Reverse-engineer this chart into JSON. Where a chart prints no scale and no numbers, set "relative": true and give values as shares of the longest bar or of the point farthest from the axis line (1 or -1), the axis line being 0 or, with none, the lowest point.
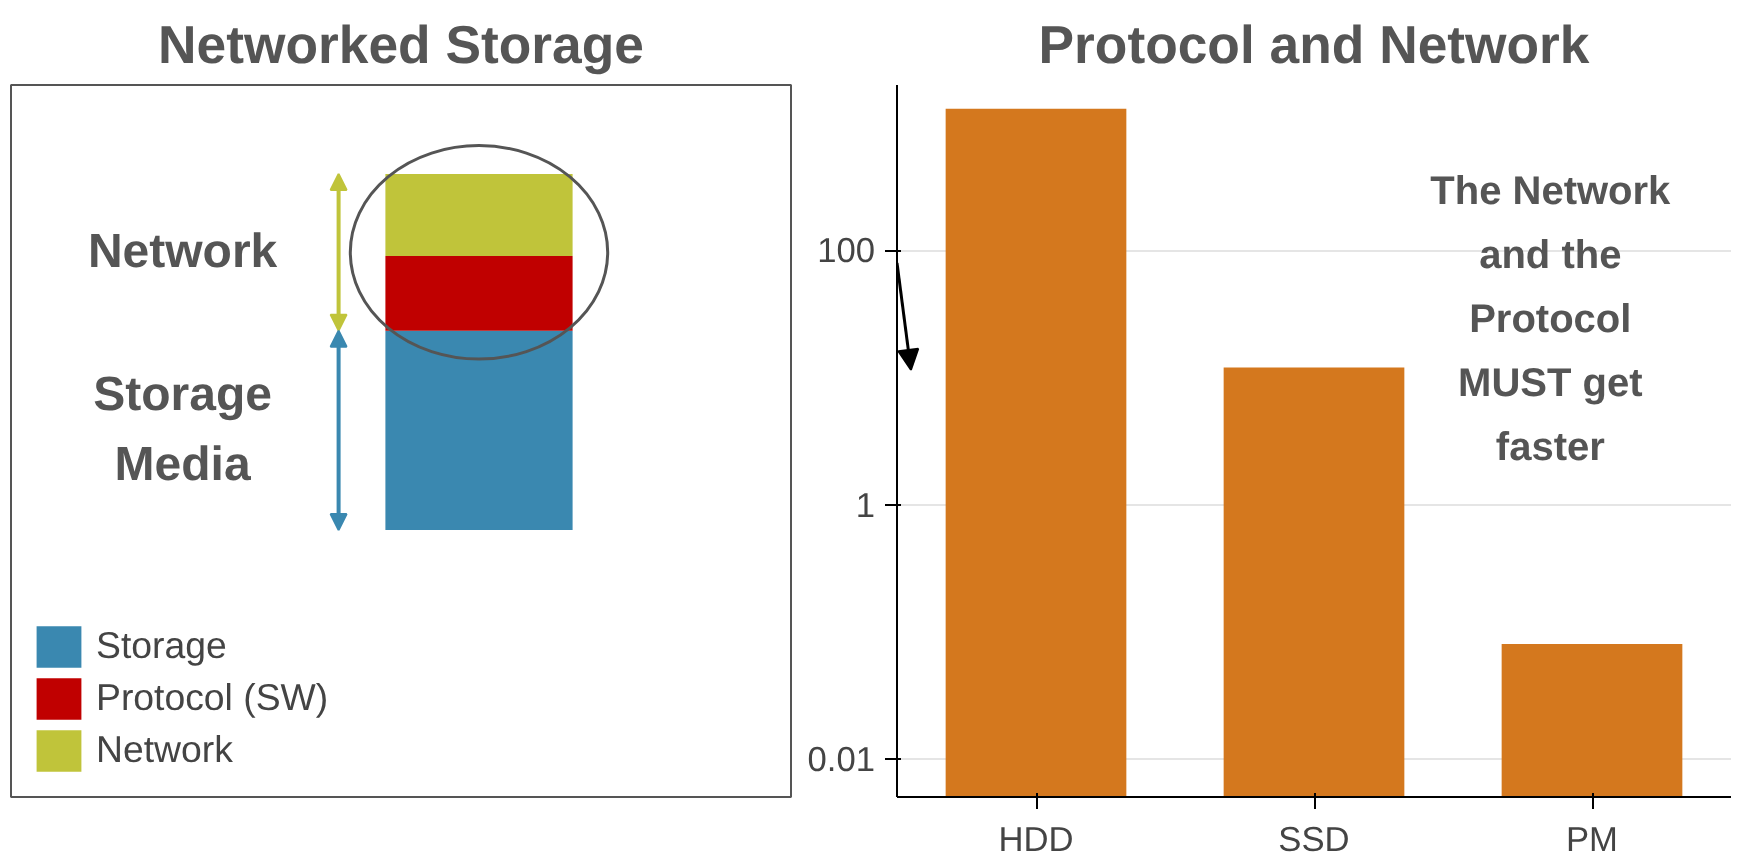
{
  "chart_data": [
    {
      "type": "bar",
      "title": "Networked Storage",
      "categories": [
        null
      ],
      "stacked": true,
      "relative": true,
      "legend": "bottom left",
      "series": [
        {
          "name": "Storage",
          "color": "#3a88b0",
          "values": [
            0.56
          ]
        },
        {
          "name": "Protocol (SW)",
          "color": "#c00000",
          "values": [
            0.21
          ]
        },
        {
          "name": "Network",
          "color": "#c0c43a",
          "values": [
            0.23
          ]
        }
      ],
      "annotations": [
        "Network",
        "Storage Media"
      ]
    },
    {
      "type": "bar",
      "title": "Protocol and Network",
      "categories": [
        "HDD",
        "SSD",
        "PM"
      ],
      "values": [
        1300,
        12,
        0.08
      ],
      "color": "#d4781e",
      "log": true,
      "ylim": [
        0.005,
        2000
      ],
      "yticks": [
        0.01,
        1,
        100
      ],
      "grid": "y",
      "annotations": [
        "The Network",
        "and the",
        "Protocol",
        "MUST get",
        "faster"
      ]
    }
  ]
}
